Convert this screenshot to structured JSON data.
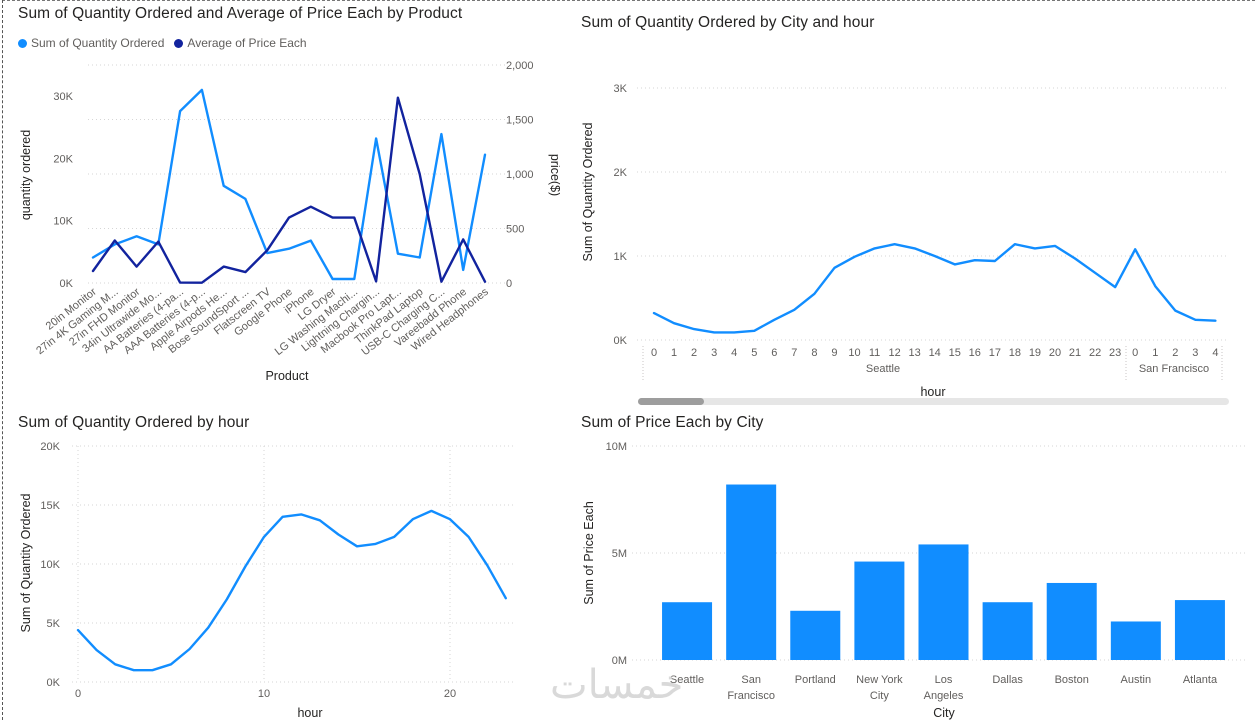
{
  "panels": {
    "p1": {
      "title": "Sum of Quantity Ordered and Average of Price Each by Product"
    },
    "p2": {
      "title": "Sum of Quantity Ordered by City and hour"
    },
    "p3": {
      "title": "Sum of Quantity Ordered by hour"
    },
    "p4": {
      "title": "Sum of Price Each by City"
    }
  },
  "watermark": "خمسات",
  "colors": {
    "light_blue": "#118dff",
    "dark_blue": "#12239e",
    "grid": "#d6d6d6"
  },
  "chart_data": [
    {
      "type": "line",
      "title": "Sum of Quantity Ordered and Average of Price Each by Product",
      "xlabel": "Product",
      "ylabel": "quantity ordered",
      "y2label": "price($)",
      "legend_position": "top-left",
      "categories": [
        "20in Monitor",
        "27in 4K Gaming M...",
        "27in FHD Monitor",
        "34in Ultrawide Mo...",
        "AA Batteries (4-pa...",
        "AAA Batteries (4-p...",
        "Apple Airpods He...",
        "Bose SoundSport ...",
        "Flatscreen TV",
        "Google Phone",
        "iPhone",
        "LG Dryer",
        "LG Washing Machi...",
        "Lightning Chargin...",
        "Macbook Pro Lapt...",
        "ThinkPad Laptop",
        "USB-C Charging C...",
        "Vareebadd Phone",
        "Wired Headphones"
      ],
      "series": [
        {
          "name": "Sum of Quantity Ordered",
          "axis": "left",
          "color": "#118dff",
          "values": [
            4100,
            6200,
            7500,
            6200,
            27600,
            31000,
            15600,
            13500,
            4800,
            5500,
            6800,
            650,
            650,
            23200,
            4700,
            4100,
            23900,
            2100,
            20600
          ]
        },
        {
          "name": "Average of Price Each",
          "axis": "right",
          "color": "#12239e",
          "values": [
            110,
            390,
            150,
            380,
            4,
            3,
            150,
            100,
            300,
            600,
            700,
            600,
            600,
            15,
            1700,
            1000,
            12,
            400,
            12
          ]
        }
      ],
      "y_ticks": [
        "0K",
        "10K",
        "20K",
        "30K"
      ],
      "y2_ticks": [
        "0",
        "500",
        "1,000",
        "1,500",
        "2,000"
      ],
      "ylim": [
        0,
        35000
      ],
      "y2lim": [
        0,
        2000
      ],
      "grid": true
    },
    {
      "type": "line",
      "title": "Sum of Quantity Ordered by City and hour",
      "xlabel": "hour",
      "ylabel": "Sum of Quantity Ordered",
      "ylim": [
        0,
        3000
      ],
      "y_ticks": [
        "0K",
        "1K",
        "2K",
        "3K"
      ],
      "x_ticks": [
        "0",
        "1",
        "2",
        "3",
        "4",
        "5",
        "6",
        "7",
        "8",
        "9",
        "10",
        "11",
        "12",
        "13",
        "14",
        "15",
        "16",
        "17",
        "18",
        "19",
        "20",
        "21",
        "22",
        "23",
        "0",
        "1",
        "2",
        "3",
        "4"
      ],
      "groups": [
        {
          "label": "Seattle"
        },
        {
          "label": "San Francisco"
        }
      ],
      "series": [
        {
          "name": "",
          "color": "#118dff",
          "values": [
            320,
            200,
            130,
            90,
            90,
            110,
            240,
            360,
            550,
            860,
            990,
            1090,
            1140,
            1090,
            1000,
            900,
            950,
            940,
            1140,
            1090,
            1120,
            970,
            800,
            630,
            1080,
            640,
            350,
            240,
            230
          ]
        }
      ],
      "grid": true
    },
    {
      "type": "line",
      "title": "Sum of Quantity Ordered by hour",
      "xlabel": "hour",
      "ylabel": "Sum of Quantity Ordered",
      "ylim": [
        0,
        20000
      ],
      "xlim": [
        -0.5,
        23.5
      ],
      "y_ticks": [
        "0K",
        "5K",
        "10K",
        "15K",
        "20K"
      ],
      "x_ticks": [
        "0",
        "10",
        "20"
      ],
      "series": [
        {
          "name": "",
          "color": "#118dff",
          "values": [
            4400,
            2700,
            1500,
            1000,
            1000,
            1500,
            2800,
            4600,
            7000,
            9800,
            12300,
            14000,
            14200,
            13700,
            12500,
            11500,
            11700,
            12300,
            13800,
            14500,
            13800,
            12300,
            9900,
            7100
          ]
        }
      ],
      "grid": true
    },
    {
      "type": "bar",
      "title": "Sum of Price Each by City",
      "xlabel": "City",
      "ylabel": "Sum of Price Each",
      "ylim": [
        0,
        10000000
      ],
      "y_ticks": [
        "0M",
        "5M",
        "10M"
      ],
      "categories": [
        [
          "Seattle"
        ],
        [
          "San",
          "Francisco"
        ],
        [
          "Portland"
        ],
        [
          "New York",
          "City"
        ],
        [
          "Los",
          "Angeles"
        ],
        [
          "Dallas"
        ],
        [
          "Boston"
        ],
        [
          "Austin"
        ],
        [
          "Atlanta"
        ]
      ],
      "values": [
        2700000,
        8200000,
        2300000,
        4600000,
        5400000,
        2700000,
        3600000,
        1800000,
        2800000
      ],
      "color": "#118dff",
      "grid": true
    }
  ]
}
